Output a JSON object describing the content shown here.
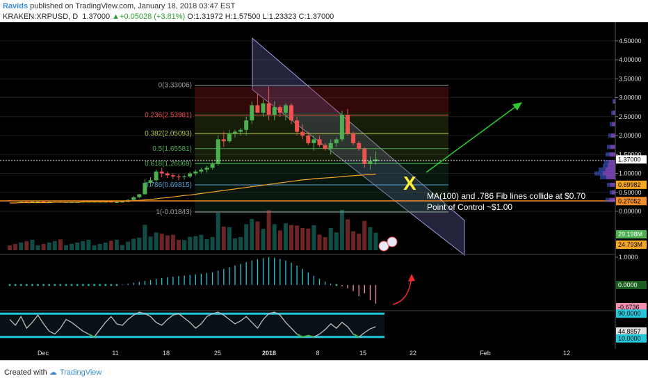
{
  "header": {
    "author": "Ravids",
    "published_text": "published on TradingView.com, January 18, 2018 03:47 EST",
    "symbol": "KRAKEN:XRPUSD, D",
    "last": "1.37000",
    "change": "+0.05028 (+3.81%)",
    "ohlc": "O:1.31972 H:1.57500 L:1.23323 C:1.37000"
  },
  "footer": {
    "created_with": "Created with",
    "brand": "TradingView"
  },
  "annotations": {
    "line1": "MA(100) and .786 Fib lines collide at $0.70",
    "line2": "Point of Control ~$1.00",
    "cross": "X"
  },
  "chart_data": [
    {
      "type": "line",
      "name": "price",
      "candles": [
        [
          0.29,
          0.29,
          0.27,
          0.28
        ],
        [
          0.28,
          0.28,
          0.26,
          0.27
        ],
        [
          0.27,
          0.28,
          0.26,
          0.27
        ],
        [
          0.27,
          0.27,
          0.25,
          0.26
        ],
        [
          0.26,
          0.27,
          0.25,
          0.26
        ],
        [
          0.26,
          0.27,
          0.25,
          0.26
        ],
        [
          0.26,
          0.26,
          0.24,
          0.25
        ],
        [
          0.25,
          0.26,
          0.24,
          0.25
        ],
        [
          0.25,
          0.26,
          0.24,
          0.25
        ],
        [
          0.25,
          0.26,
          0.23,
          0.24
        ],
        [
          0.24,
          0.25,
          0.23,
          0.24
        ],
        [
          0.24,
          0.25,
          0.23,
          0.24
        ],
        [
          0.24,
          0.25,
          0.23,
          0.24
        ],
        [
          0.24,
          0.25,
          0.23,
          0.25
        ],
        [
          0.25,
          0.26,
          0.24,
          0.25
        ],
        [
          0.25,
          0.26,
          0.24,
          0.25
        ],
        [
          0.25,
          0.26,
          0.24,
          0.25
        ],
        [
          0.25,
          0.26,
          0.24,
          0.25
        ],
        [
          0.25,
          0.26,
          0.23,
          0.24
        ],
        [
          0.24,
          0.25,
          0.23,
          0.24
        ],
        [
          0.24,
          0.26,
          0.23,
          0.25
        ],
        [
          0.25,
          0.32,
          0.24,
          0.3
        ],
        [
          0.3,
          0.4,
          0.28,
          0.37
        ],
        [
          0.37,
          0.46,
          0.35,
          0.45
        ],
        [
          0.45,
          0.85,
          0.44,
          0.75
        ],
        [
          0.75,
          0.9,
          0.65,
          0.82
        ],
        [
          0.82,
          1.1,
          0.78,
          1.05
        ],
        [
          1.05,
          1.15,
          0.9,
          1.0
        ],
        [
          1.0,
          1.05,
          0.88,
          0.95
        ],
        [
          0.95,
          1.0,
          0.85,
          0.92
        ],
        [
          0.92,
          0.98,
          0.82,
          0.9
        ],
        [
          0.9,
          0.96,
          0.84,
          0.92
        ],
        [
          0.92,
          1.05,
          0.88,
          1.0
        ],
        [
          1.0,
          1.1,
          0.95,
          1.05
        ],
        [
          1.05,
          1.15,
          1.0,
          1.1
        ],
        [
          1.1,
          1.2,
          1.02,
          1.15
        ],
        [
          1.15,
          1.3,
          1.1,
          1.25
        ],
        [
          1.25,
          2.0,
          1.2,
          1.9
        ],
        [
          1.9,
          2.1,
          1.7,
          1.85
        ],
        [
          1.85,
          2.15,
          1.8,
          2.05
        ],
        [
          2.05,
          2.15,
          1.95,
          2.1
        ],
        [
          2.1,
          2.2,
          2.0,
          2.15
        ],
        [
          2.15,
          2.5,
          2.0,
          2.4
        ],
        [
          2.4,
          2.9,
          2.3,
          2.8
        ],
        [
          2.8,
          3.1,
          2.6,
          2.6
        ],
        [
          2.6,
          2.95,
          2.5,
          2.85
        ],
        [
          2.85,
          3.3,
          2.4,
          2.55
        ],
        [
          2.55,
          2.9,
          2.4,
          2.75
        ],
        [
          2.75,
          2.8,
          2.5,
          2.6
        ],
        [
          2.6,
          2.85,
          2.4,
          2.8
        ],
        [
          2.8,
          2.85,
          2.3,
          2.4
        ],
        [
          2.4,
          2.5,
          2.0,
          2.1
        ],
        [
          2.1,
          2.3,
          1.9,
          2.0
        ],
        [
          2.0,
          2.1,
          1.75,
          1.8
        ],
        [
          1.8,
          2.0,
          1.6,
          1.9
        ],
        [
          1.9,
          2.0,
          1.7,
          1.75
        ],
        [
          1.75,
          1.8,
          1.6,
          1.65
        ],
        [
          1.65,
          1.9,
          1.5,
          1.8
        ],
        [
          1.8,
          1.95,
          1.7,
          1.9
        ],
        [
          1.9,
          2.65,
          1.85,
          2.55
        ],
        [
          2.55,
          2.7,
          2.0,
          2.05
        ],
        [
          2.05,
          2.1,
          1.75,
          1.8
        ],
        [
          1.8,
          1.85,
          1.6,
          1.65
        ],
        [
          1.65,
          1.7,
          1.15,
          1.25
        ],
        [
          1.25,
          1.45,
          1.1,
          1.32
        ],
        [
          1.32,
          1.58,
          1.23,
          1.37
        ]
      ],
      "ma100": [
        0.22,
        0.22,
        0.23,
        0.23,
        0.23,
        0.23,
        0.23,
        0.23,
        0.24,
        0.24,
        0.24,
        0.24,
        0.24,
        0.25,
        0.25,
        0.25,
        0.25,
        0.25,
        0.26,
        0.26,
        0.26,
        0.27,
        0.28,
        0.29,
        0.3,
        0.31,
        0.33,
        0.35,
        0.36,
        0.38,
        0.4,
        0.42,
        0.43,
        0.45,
        0.47,
        0.49,
        0.51,
        0.53,
        0.55,
        0.57,
        0.59,
        0.61,
        0.63,
        0.65,
        0.67,
        0.69,
        0.71,
        0.73,
        0.75,
        0.77,
        0.79,
        0.81,
        0.83,
        0.84,
        0.86,
        0.87,
        0.88,
        0.89,
        0.9,
        0.92,
        0.93,
        0.94,
        0.95,
        0.96,
        0.97,
        0.98
      ],
      "fib_levels": [
        {
          "label": "0(3.33006)",
          "value": 3.33006,
          "color": "#9e9e9e"
        },
        {
          "label": "0.236(2.53981)",
          "value": 2.53981,
          "color": "#ef5350"
        },
        {
          "label": "0.382(2.05093)",
          "value": 2.05093,
          "color": "#b7c94a"
        },
        {
          "label": "0.5(1.65581)",
          "value": 1.65581,
          "color": "#4caf50"
        },
        {
          "label": "0.618(1.26069)",
          "value": 1.26069,
          "color": "#4caf50"
        },
        {
          "label": "0.786(0.69815)",
          "value": 0.69815,
          "color": "#4fa3d8"
        },
        {
          "label": "1(-0.01843)",
          "value": -0.01843,
          "color": "#9e9e9e"
        }
      ],
      "y_ticks": [
        "4.50000",
        "4.00000",
        "3.50000",
        "3.00000",
        "2.50000",
        "2.00000",
        "1.50000",
        "1.00000",
        "0.50000",
        "0.00000"
      ],
      "price_tags": [
        {
          "label": "1.37000",
          "value": 1.37,
          "bg": "#ffffff",
          "fg": "#000000"
        },
        {
          "label": "0.69982",
          "value": 0.69982,
          "bg": "#f6a623",
          "fg": "#000000"
        },
        {
          "label": "0.27052",
          "value": 0.27052,
          "bg": "#f28c28",
          "fg": "#000000"
        }
      ],
      "volume_tags": [
        {
          "label": "29.198M",
          "bg": "#4caf50",
          "fg": "#ffffff"
        },
        {
          "label": "24.793M",
          "bg": "#f6a623",
          "fg": "#000000"
        }
      ],
      "x_labels": [
        "Dec",
        "11",
        "18",
        "25",
        "2018",
        "8",
        "15",
        "22",
        "Feb",
        "12"
      ]
    },
    {
      "type": "bar",
      "name": "histogram",
      "y_ticks": [
        "1.0000",
        "0.0000"
      ],
      "tags": [
        {
          "label": "0.0000",
          "bg": "#1b5e20",
          "fg": "#ffffff"
        },
        {
          "label": "-0.6736",
          "bg": "#f48fb1",
          "fg": "#000000"
        }
      ],
      "values": [
        0,
        0,
        0,
        0,
        0,
        0,
        0,
        0,
        0,
        0,
        0,
        0,
        0,
        0,
        0,
        0,
        0,
        0,
        0,
        0,
        0.02,
        0.05,
        0.08,
        0.11,
        0.15,
        0.18,
        0.22,
        0.25,
        0.28,
        0.3,
        0.32,
        0.34,
        0.36,
        0.38,
        0.4,
        0.43,
        0.46,
        0.52,
        0.58,
        0.64,
        0.7,
        0.76,
        0.82,
        0.88,
        0.93,
        0.97,
        1.0,
        0.98,
        0.94,
        0.88,
        0.8,
        0.7,
        0.58,
        0.45,
        0.33,
        0.22,
        0.12,
        0.05,
        0.0,
        -0.05,
        -0.12,
        -0.22,
        -0.4,
        -0.3,
        -0.55,
        -0.67
      ]
    },
    {
      "type": "line",
      "name": "stochastic",
      "y_ticks": [
        "90.0000",
        "10.0000"
      ],
      "tags": [
        {
          "label": "90.0000",
          "bg": "#26c6da",
          "fg": "#000000"
        },
        {
          "label": "44.8857",
          "bg": "#e0e0e0",
          "fg": "#000000"
        },
        {
          "label": "10.0000",
          "bg": "#26c6da",
          "fg": "#000000"
        }
      ],
      "values": [
        70,
        50,
        80,
        40,
        60,
        85,
        55,
        30,
        20,
        40,
        70,
        60,
        45,
        30,
        20,
        10,
        35,
        60,
        80,
        55,
        50,
        70,
        85,
        95,
        90,
        80,
        60,
        50,
        70,
        85,
        90,
        75,
        60,
        40,
        55,
        80,
        90,
        95,
        85,
        70,
        55,
        65,
        80,
        60,
        40,
        70,
        90,
        95,
        85,
        60,
        40,
        20,
        10,
        15,
        10,
        20,
        35,
        55,
        40,
        60,
        45,
        20,
        10,
        25,
        38,
        45
      ]
    }
  ]
}
